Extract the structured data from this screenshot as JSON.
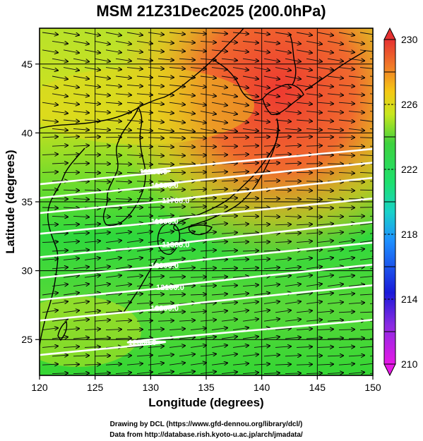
{
  "title": "MSM 21Z31Dec2025 (200.0hPa)",
  "xlabel": "Longitude (degrees)",
  "ylabel": "Latitude  (degrees)",
  "xticks": [
    120,
    125,
    130,
    135,
    140,
    145,
    150
  ],
  "yticks": [
    25,
    30,
    35,
    40,
    45
  ],
  "xlim": [
    120,
    150
  ],
  "ylim": [
    22.4,
    47.6
  ],
  "colorbar": {
    "min": 210,
    "max": 230,
    "labels": [
      210,
      214,
      218,
      222,
      226,
      230
    ],
    "colors": [
      "#e619e6",
      "#1a1ad9",
      "#1ab8f0",
      "#1ee06e",
      "#3ed23e",
      "#c8e61e",
      "#f5c814",
      "#f07828",
      "#e63232"
    ]
  },
  "contours": [
    {
      "label": "11500.0",
      "lon": 130.0,
      "lat": 37.2
    },
    {
      "label": "11600.0",
      "lon": 131.0,
      "lat": 36.2
    },
    {
      "label": "11700.0",
      "lon": 132.0,
      "lat": 35.1
    },
    {
      "label": "11800.0",
      "lon": 131.0,
      "lat": 33.6
    },
    {
      "label": "11900.0",
      "lon": 132.0,
      "lat": 31.9
    },
    {
      "label": "12000.0",
      "lon": 131.0,
      "lat": 30.4
    },
    {
      "label": "12100.0",
      "lon": 131.5,
      "lat": 28.8
    },
    {
      "label": "12200.0",
      "lon": 131.0,
      "lat": 27.3
    },
    {
      "label": "12300.0",
      "lon": 129.0,
      "lat": 24.8
    }
  ],
  "credits": {
    "line1": "Drawing by DCL (https://www.gfd-dennou.org/library/dcl/)",
    "line2": "Data from http://database.rish.kyoto-u.ac.jp/arch/jmadata/"
  }
}
